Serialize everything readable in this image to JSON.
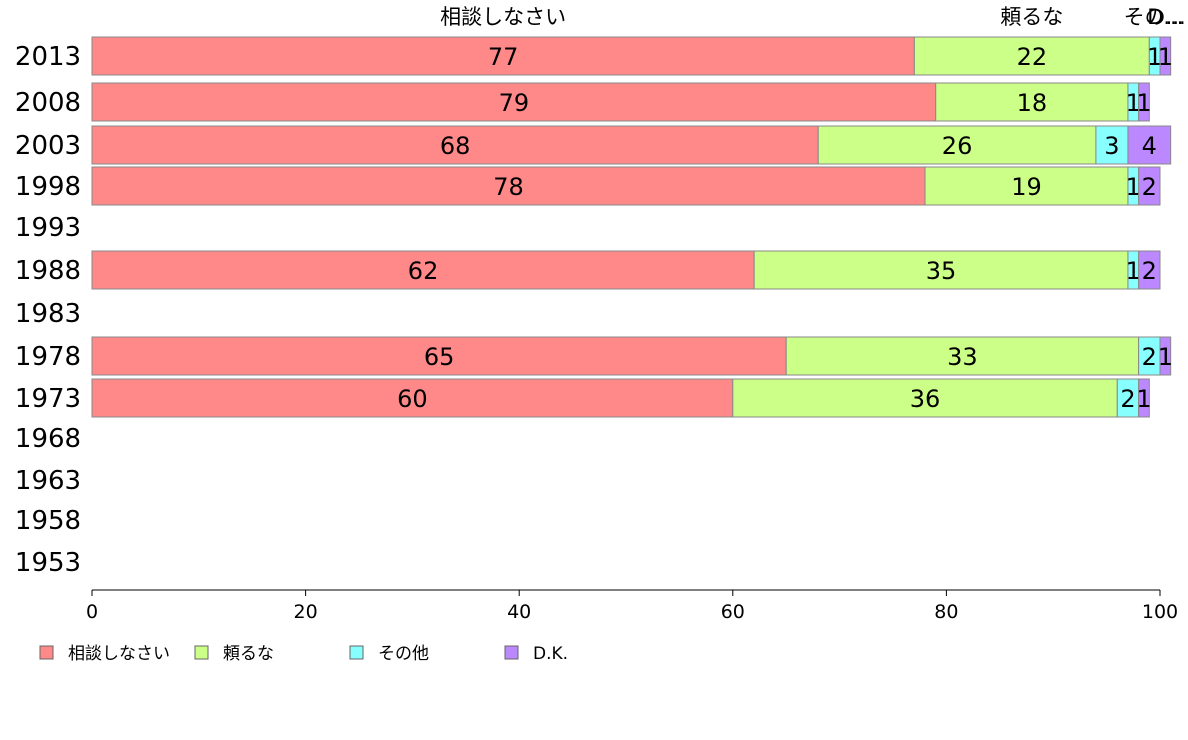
{
  "chart_data": {
    "type": "bar",
    "orientation": "horizontal",
    "stacked": true,
    "categories": [
      "2013",
      "2008",
      "2003",
      "1998",
      "1993",
      "1988",
      "1983",
      "1978",
      "1973",
      "1968",
      "1963",
      "1958",
      "1953"
    ],
    "series": [
      {
        "name": "相談しなさい",
        "color": "#ff8888",
        "values": [
          77,
          79,
          68,
          78,
          null,
          62,
          null,
          65,
          60,
          null,
          null,
          null,
          null
        ]
      },
      {
        "name": "頼るな",
        "color": "#ccff88",
        "values": [
          22,
          18,
          26,
          19,
          null,
          35,
          null,
          33,
          36,
          null,
          null,
          null,
          null
        ]
      },
      {
        "name": "その他",
        "color": "#88ffff",
        "values": [
          1,
          1,
          3,
          1,
          null,
          1,
          null,
          2,
          2,
          null,
          null,
          null,
          null
        ]
      },
      {
        "name": "D.K.",
        "color": "#bb88ff",
        "values": [
          1,
          1,
          4,
          2,
          null,
          2,
          null,
          1,
          1,
          null,
          null,
          null,
          null
        ]
      }
    ],
    "top_labels": [
      "相談しなさい",
      "頼るな",
      "その...",
      "D..."
    ],
    "xlim": [
      0,
      100
    ],
    "xticks": [
      0,
      20,
      40,
      60,
      80,
      100
    ],
    "legend_position": "bottom-left",
    "grid": false
  }
}
